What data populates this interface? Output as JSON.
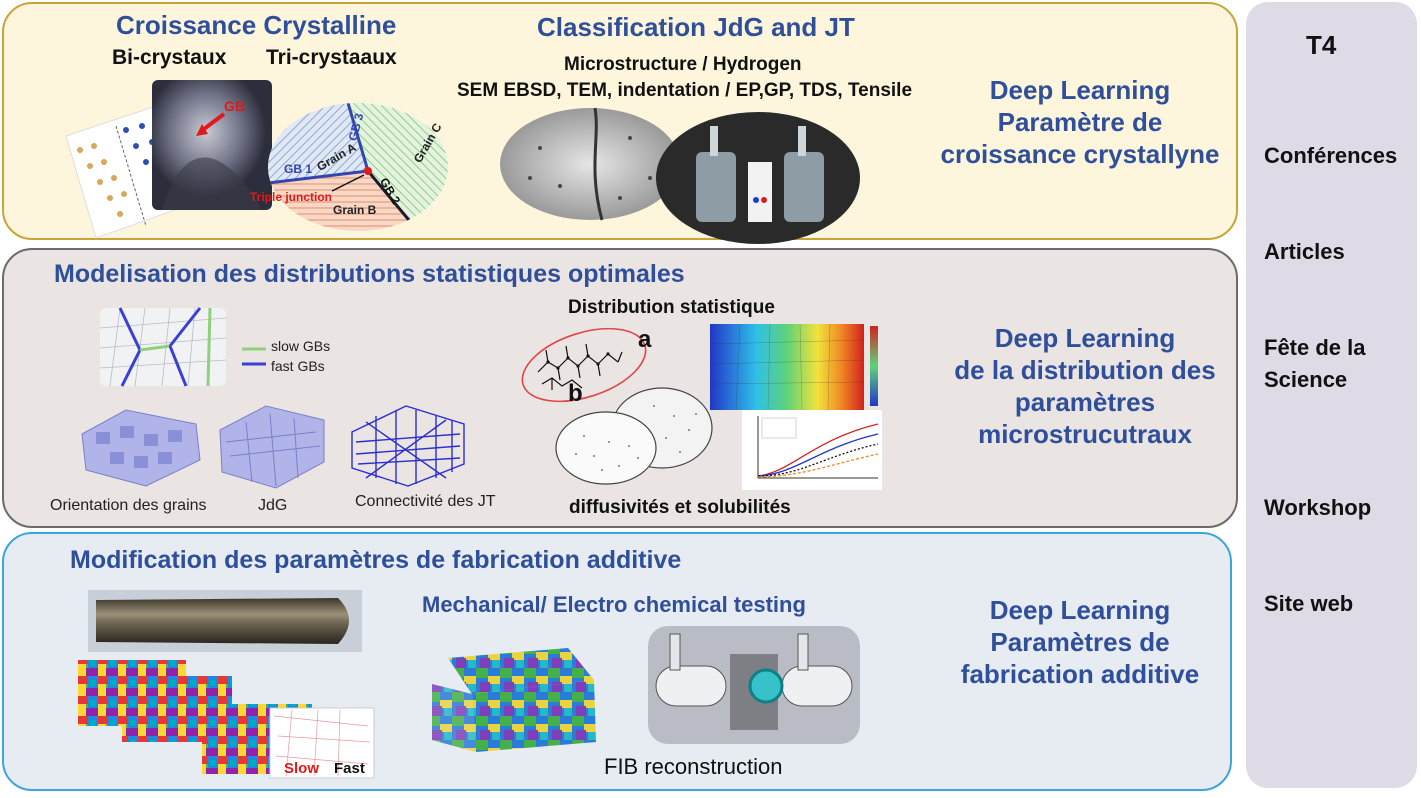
{
  "panel1": {
    "title_left": "Croissance Crystalline",
    "bi": "Bi-crystaux",
    "tri": "Tri-crystaaux",
    "gb": "GB",
    "gb1": "GB 1",
    "gb2": "GB 2",
    "gb3": "GB 3",
    "grain_a": "Grain A",
    "grain_b": "Grain B",
    "grain_c": "Grain C",
    "triple": "Triple junction",
    "title_mid": "Classification JdG and JT",
    "micro": "Microstructure / Hydrogen",
    "methods": "SEM EBSD, TEM, indentation  / EP,GP, TDS, Tensile",
    "dl_line1": "Deep Learning",
    "dl_line2": "Paramètre de",
    "dl_line3": "croissance crystallyne"
  },
  "panel2": {
    "title": "Modelisation des distributions statistiques optimales",
    "slow": "slow GBs",
    "fast": "fast GBs",
    "orient": "Orientation des grains",
    "jdg": "JdG",
    "connect": "Connectivité des JT",
    "dist_title": "Distribution statistique",
    "label_a": "a",
    "label_b": "b",
    "diffus": "diffusivités et solubilités",
    "dl_line1": "Deep Learning",
    "dl_line2": "de la distribution des",
    "dl_line3": "paramètres",
    "dl_line4": "microstrucutraux"
  },
  "panel3": {
    "title": "Modification des paramètres de fabrication additive",
    "mech": "Mechanical/  Electro chemical testing",
    "fib": "FIB reconstruction",
    "slow": "Slow",
    "fast": "Fast",
    "dl_line1": "Deep Learning",
    "dl_line2": "Paramètres de",
    "dl_line3": "fabrication additive"
  },
  "sidebar": {
    "title": "T4",
    "items": [
      "Conférences",
      "Articles",
      "Fête de la",
      "Science",
      "Workshop",
      "Site web"
    ]
  },
  "colors": {
    "title_blue": "#2f4f9a",
    "panel1_border": "#c9a437",
    "panel3_border": "#3aa6d9",
    "slow_gb": "#8fd07a",
    "fast_gb": "#3b3fd6"
  }
}
